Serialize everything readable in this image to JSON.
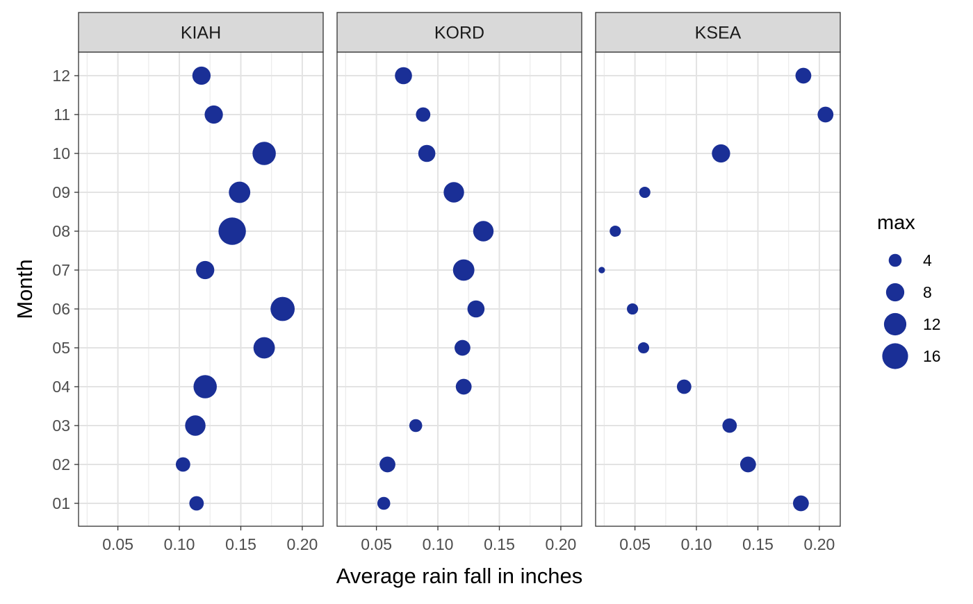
{
  "chart_data": {
    "type": "scatter",
    "xlabel": "Average rain fall in inches",
    "ylabel": "Month",
    "xlim": [
      0.018,
      0.217
    ],
    "x_ticks": [
      0.05,
      0.1,
      0.15,
      0.2
    ],
    "x_tick_labels": [
      "0.05",
      "0.10",
      "0.15",
      "0.20"
    ],
    "y_categories": [
      "01",
      "02",
      "03",
      "04",
      "05",
      "06",
      "07",
      "08",
      "09",
      "10",
      "11",
      "12"
    ],
    "grid": true,
    "point_color": "#1a2f96",
    "legend": {
      "title": "max",
      "placement": "right",
      "values": [
        4,
        8,
        12,
        16
      ],
      "labels": [
        "4",
        "8",
        "12",
        "16"
      ]
    },
    "panels": [
      {
        "name": "KIAH",
        "points": [
          {
            "month": "12",
            "x": 0.118,
            "max": 8
          },
          {
            "month": "11",
            "x": 0.128,
            "max": 8
          },
          {
            "month": "10",
            "x": 0.169,
            "max": 13
          },
          {
            "month": "09",
            "x": 0.149,
            "max": 11
          },
          {
            "month": "08",
            "x": 0.143,
            "max": 18
          },
          {
            "month": "07",
            "x": 0.121,
            "max": 8
          },
          {
            "month": "06",
            "x": 0.184,
            "max": 14
          },
          {
            "month": "05",
            "x": 0.169,
            "max": 11
          },
          {
            "month": "04",
            "x": 0.121,
            "max": 13
          },
          {
            "month": "03",
            "x": 0.113,
            "max": 10
          },
          {
            "month": "02",
            "x": 0.103,
            "max": 5
          },
          {
            "month": "01",
            "x": 0.114,
            "max": 5
          }
        ]
      },
      {
        "name": "KORD",
        "points": [
          {
            "month": "12",
            "x": 0.072,
            "max": 7
          },
          {
            "month": "11",
            "x": 0.088,
            "max": 5
          },
          {
            "month": "10",
            "x": 0.091,
            "max": 7
          },
          {
            "month": "09",
            "x": 0.113,
            "max": 10
          },
          {
            "month": "08",
            "x": 0.137,
            "max": 10
          },
          {
            "month": "07",
            "x": 0.121,
            "max": 11
          },
          {
            "month": "06",
            "x": 0.131,
            "max": 7
          },
          {
            "month": "05",
            "x": 0.12,
            "max": 6
          },
          {
            "month": "04",
            "x": 0.121,
            "max": 6
          },
          {
            "month": "03",
            "x": 0.082,
            "max": 4
          },
          {
            "month": "02",
            "x": 0.059,
            "max": 6
          },
          {
            "month": "01",
            "x": 0.056,
            "max": 4
          }
        ]
      },
      {
        "name": "KSEA",
        "points": [
          {
            "month": "12",
            "x": 0.187,
            "max": 6
          },
          {
            "month": "11",
            "x": 0.205,
            "max": 6
          },
          {
            "month": "10",
            "x": 0.12,
            "max": 8
          },
          {
            "month": "09",
            "x": 0.058,
            "max": 3
          },
          {
            "month": "08",
            "x": 0.034,
            "max": 3
          },
          {
            "month": "07",
            "x": 0.023,
            "max": 1
          },
          {
            "month": "06",
            "x": 0.048,
            "max": 3
          },
          {
            "month": "05",
            "x": 0.057,
            "max": 3
          },
          {
            "month": "04",
            "x": 0.09,
            "max": 5
          },
          {
            "month": "03",
            "x": 0.127,
            "max": 5
          },
          {
            "month": "02",
            "x": 0.142,
            "max": 6
          },
          {
            "month": "01",
            "x": 0.185,
            "max": 6
          }
        ]
      }
    ]
  }
}
